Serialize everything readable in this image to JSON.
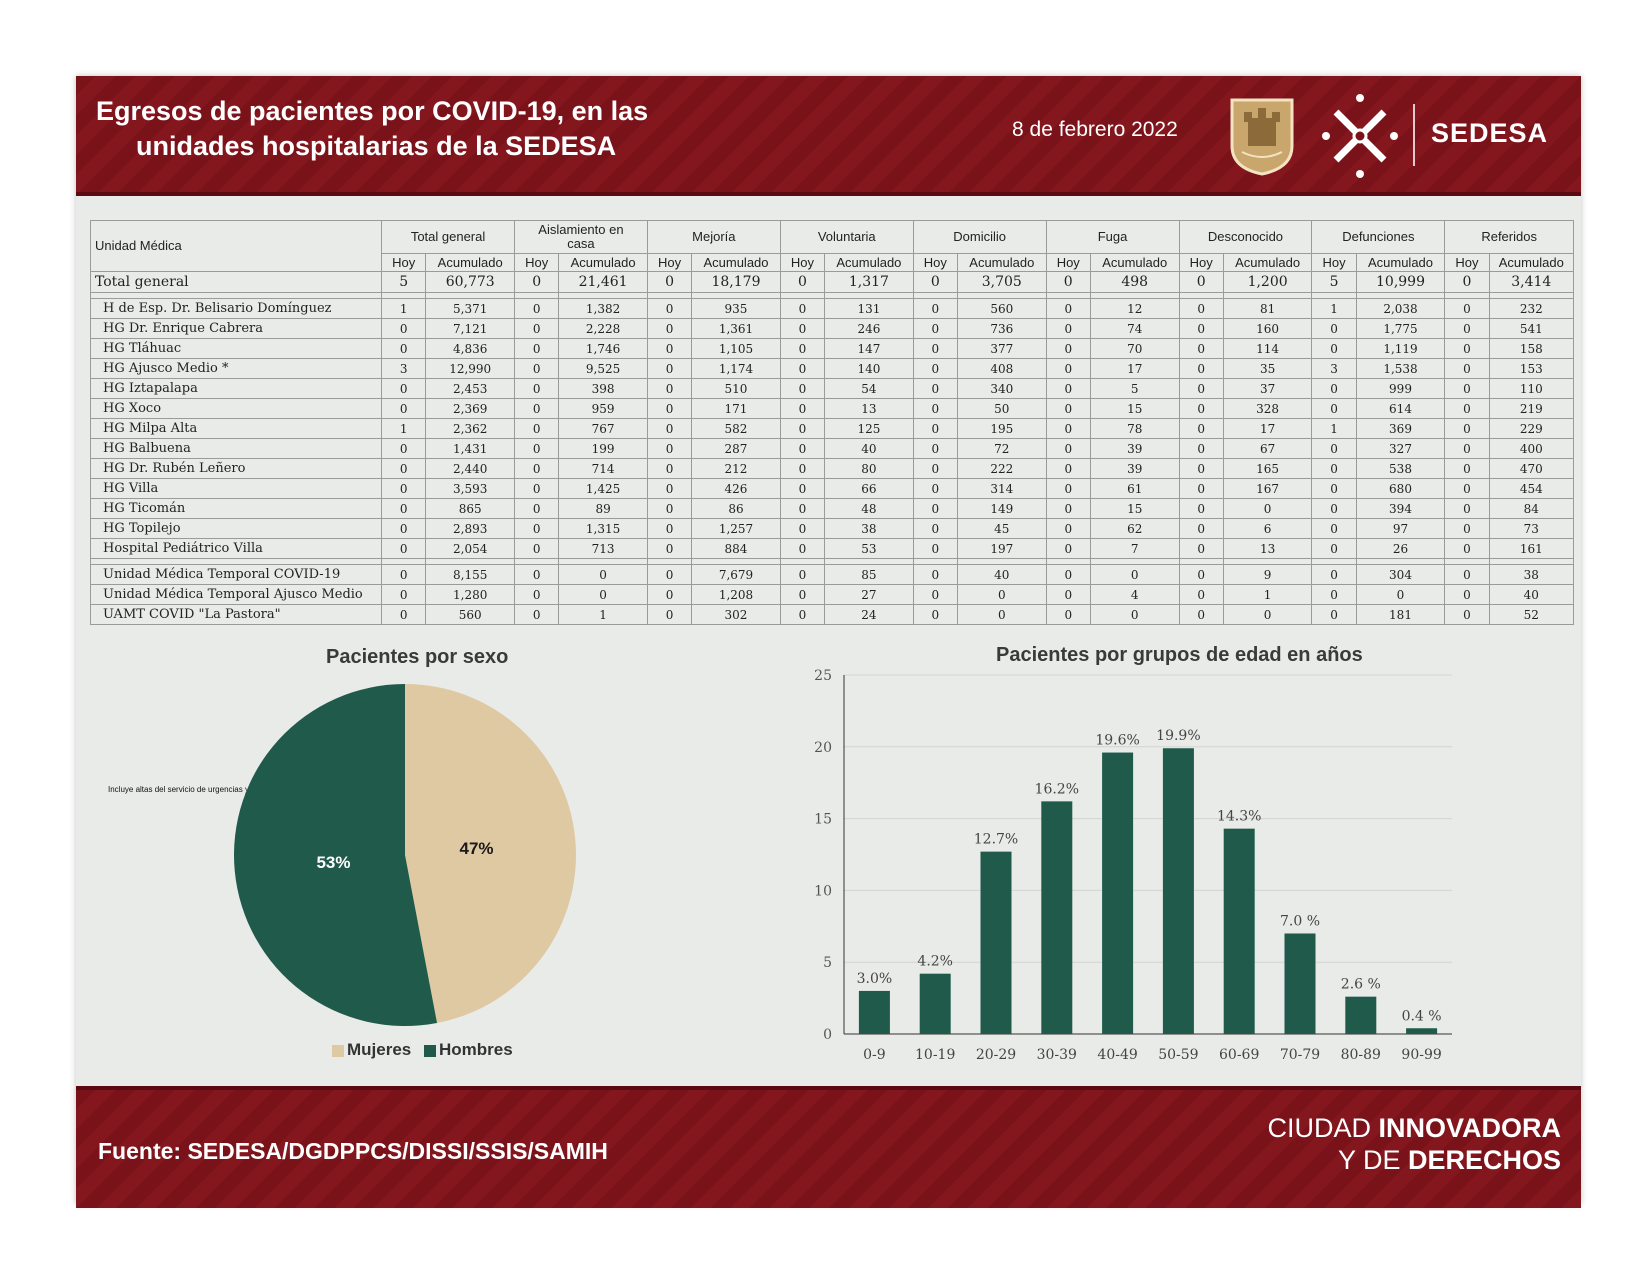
{
  "header": {
    "title_line1": "Egresos de pacientes por COVID-19, en las",
    "title_line2": "unidades  hospitalarias de la SEDESA",
    "date": "8 de febrero 2022",
    "brand": "SEDESA"
  },
  "table": {
    "unit_header": "Unidad Médica",
    "groups": [
      "Total general",
      "Aislamiento en casa",
      "Mejoría",
      "Voluntaria",
      "Domicilio",
      "Fuga",
      "Desconocido",
      "Defunciones",
      "Referidos"
    ],
    "sub_hoy": "Hoy",
    "sub_acum": "Acumulado",
    "total": [
      "Total general",
      "5",
      "60,773",
      "0",
      "21,461",
      "0",
      "18,179",
      "0",
      "1,317",
      "0",
      "3,705",
      "0",
      "498",
      "0",
      "1,200",
      "5",
      "10,999",
      "0",
      "3,414"
    ],
    "block1": [
      [
        "H de Esp. Dr. Belisario Domínguez",
        "1",
        "5,371",
        "0",
        "1,382",
        "0",
        "935",
        "0",
        "131",
        "0",
        "560",
        "0",
        "12",
        "0",
        "81",
        "1",
        "2,038",
        "0",
        "232"
      ],
      [
        "HG Dr. Enrique Cabrera",
        "0",
        "7,121",
        "0",
        "2,228",
        "0",
        "1,361",
        "0",
        "246",
        "0",
        "736",
        "0",
        "74",
        "0",
        "160",
        "0",
        "1,775",
        "0",
        "541"
      ],
      [
        "HG Tláhuac",
        "0",
        "4,836",
        "0",
        "1,746",
        "0",
        "1,105",
        "0",
        "147",
        "0",
        "377",
        "0",
        "70",
        "0",
        "114",
        "0",
        "1,119",
        "0",
        "158"
      ],
      [
        "HG Ajusco Medio *",
        "3",
        "12,990",
        "0",
        "9,525",
        "0",
        "1,174",
        "0",
        "140",
        "0",
        "408",
        "0",
        "17",
        "0",
        "35",
        "3",
        "1,538",
        "0",
        "153"
      ],
      [
        "HG Iztapalapa",
        "0",
        "2,453",
        "0",
        "398",
        "0",
        "510",
        "0",
        "54",
        "0",
        "340",
        "0",
        "5",
        "0",
        "37",
        "0",
        "999",
        "0",
        "110"
      ],
      [
        "HG Xoco",
        "0",
        "2,369",
        "0",
        "959",
        "0",
        "171",
        "0",
        "13",
        "0",
        "50",
        "0",
        "15",
        "0",
        "328",
        "0",
        "614",
        "0",
        "219"
      ],
      [
        "HG Milpa Alta",
        "1",
        "2,362",
        "0",
        "767",
        "0",
        "582",
        "0",
        "125",
        "0",
        "195",
        "0",
        "78",
        "0",
        "17",
        "1",
        "369",
        "0",
        "229"
      ],
      [
        "HG Balbuena",
        "0",
        "1,431",
        "0",
        "199",
        "0",
        "287",
        "0",
        "40",
        "0",
        "72",
        "0",
        "39",
        "0",
        "67",
        "0",
        "327",
        "0",
        "400"
      ],
      [
        "HG Dr. Rubén Leñero",
        "0",
        "2,440",
        "0",
        "714",
        "0",
        "212",
        "0",
        "80",
        "0",
        "222",
        "0",
        "39",
        "0",
        "165",
        "0",
        "538",
        "0",
        "470"
      ],
      [
        "HG Villa",
        "0",
        "3,593",
        "0",
        "1,425",
        "0",
        "426",
        "0",
        "66",
        "0",
        "314",
        "0",
        "61",
        "0",
        "167",
        "0",
        "680",
        "0",
        "454"
      ],
      [
        "HG Ticomán",
        "0",
        "865",
        "0",
        "89",
        "0",
        "86",
        "0",
        "48",
        "0",
        "149",
        "0",
        "15",
        "0",
        "0",
        "0",
        "394",
        "0",
        "84"
      ],
      [
        "HG Topilejo",
        "0",
        "2,893",
        "0",
        "1,315",
        "0",
        "1,257",
        "0",
        "38",
        "0",
        "45",
        "0",
        "62",
        "0",
        "6",
        "0",
        "97",
        "0",
        "73"
      ],
      [
        "Hospital Pediátrico Villa",
        "0",
        "2,054",
        "0",
        "713",
        "0",
        "884",
        "0",
        "53",
        "0",
        "197",
        "0",
        "7",
        "0",
        "13",
        "0",
        "26",
        "0",
        "161"
      ]
    ],
    "block2": [
      [
        "Unidad Médica Temporal COVID-19",
        "0",
        "8,155",
        "0",
        "0",
        "0",
        "7,679",
        "0",
        "85",
        "0",
        "40",
        "0",
        "0",
        "0",
        "9",
        "0",
        "304",
        "0",
        "38"
      ],
      [
        "Unidad Médica Temporal Ajusco Medio",
        "0",
        "1,280",
        "0",
        "0",
        "0",
        "1,208",
        "0",
        "27",
        "0",
        "0",
        "0",
        "4",
        "0",
        "1",
        "0",
        "0",
        "0",
        "40"
      ],
      [
        "UAMT COVID \"La Pastora\"",
        "0",
        "560",
        "0",
        "1",
        "0",
        "302",
        "0",
        "24",
        "0",
        "0",
        "0",
        "0",
        "0",
        "0",
        "0",
        "181",
        "0",
        "52"
      ]
    ],
    "note": "Incluye altas del servicio de urgencias y egresos de hospitalización"
  },
  "chart_data": [
    {
      "type": "pie",
      "title": "Pacientes por sexo",
      "categories": [
        "Mujeres",
        "Hombres"
      ],
      "values": [
        47,
        53
      ],
      "labels": [
        "47%",
        "53%"
      ],
      "colors": [
        "#dfc9a3",
        "#1f5a4b"
      ],
      "legend": "bottom"
    },
    {
      "type": "bar",
      "title": "Pacientes por grupos de edad en años",
      "categories": [
        "0-9",
        "10-19",
        "20-29",
        "30-39",
        "40-49",
        "50-59",
        "60-69",
        "70-79",
        "80-89",
        "90-99"
      ],
      "values": [
        3.0,
        4.2,
        12.7,
        16.2,
        19.6,
        19.9,
        14.3,
        7.0,
        2.6,
        0.4
      ],
      "labels": [
        "3.0%",
        "4.2%",
        "12.7%",
        "16.2%",
        "19.6%",
        "19.9%",
        "14.3%",
        "7.0 %",
        "2.6 %",
        "0.4 %"
      ],
      "ylim": [
        0,
        25
      ],
      "yticks": [
        "0",
        "5",
        "10",
        "15",
        "20",
        "25"
      ],
      "color": "#1f5a4b",
      "grid": true
    }
  ],
  "footer": {
    "source": "Fuente: SEDESA/DGDPPCS/DISSI/SSIS/SAMIH",
    "slogan_l1a": "CIUDAD ",
    "slogan_l1b": "INNOVADORA",
    "slogan_l2a": "Y DE ",
    "slogan_l2b": "DERECHOS"
  },
  "colors": {
    "maroon": "#7a1219",
    "green": "#1f5a4b",
    "beige": "#dfc9a3"
  }
}
